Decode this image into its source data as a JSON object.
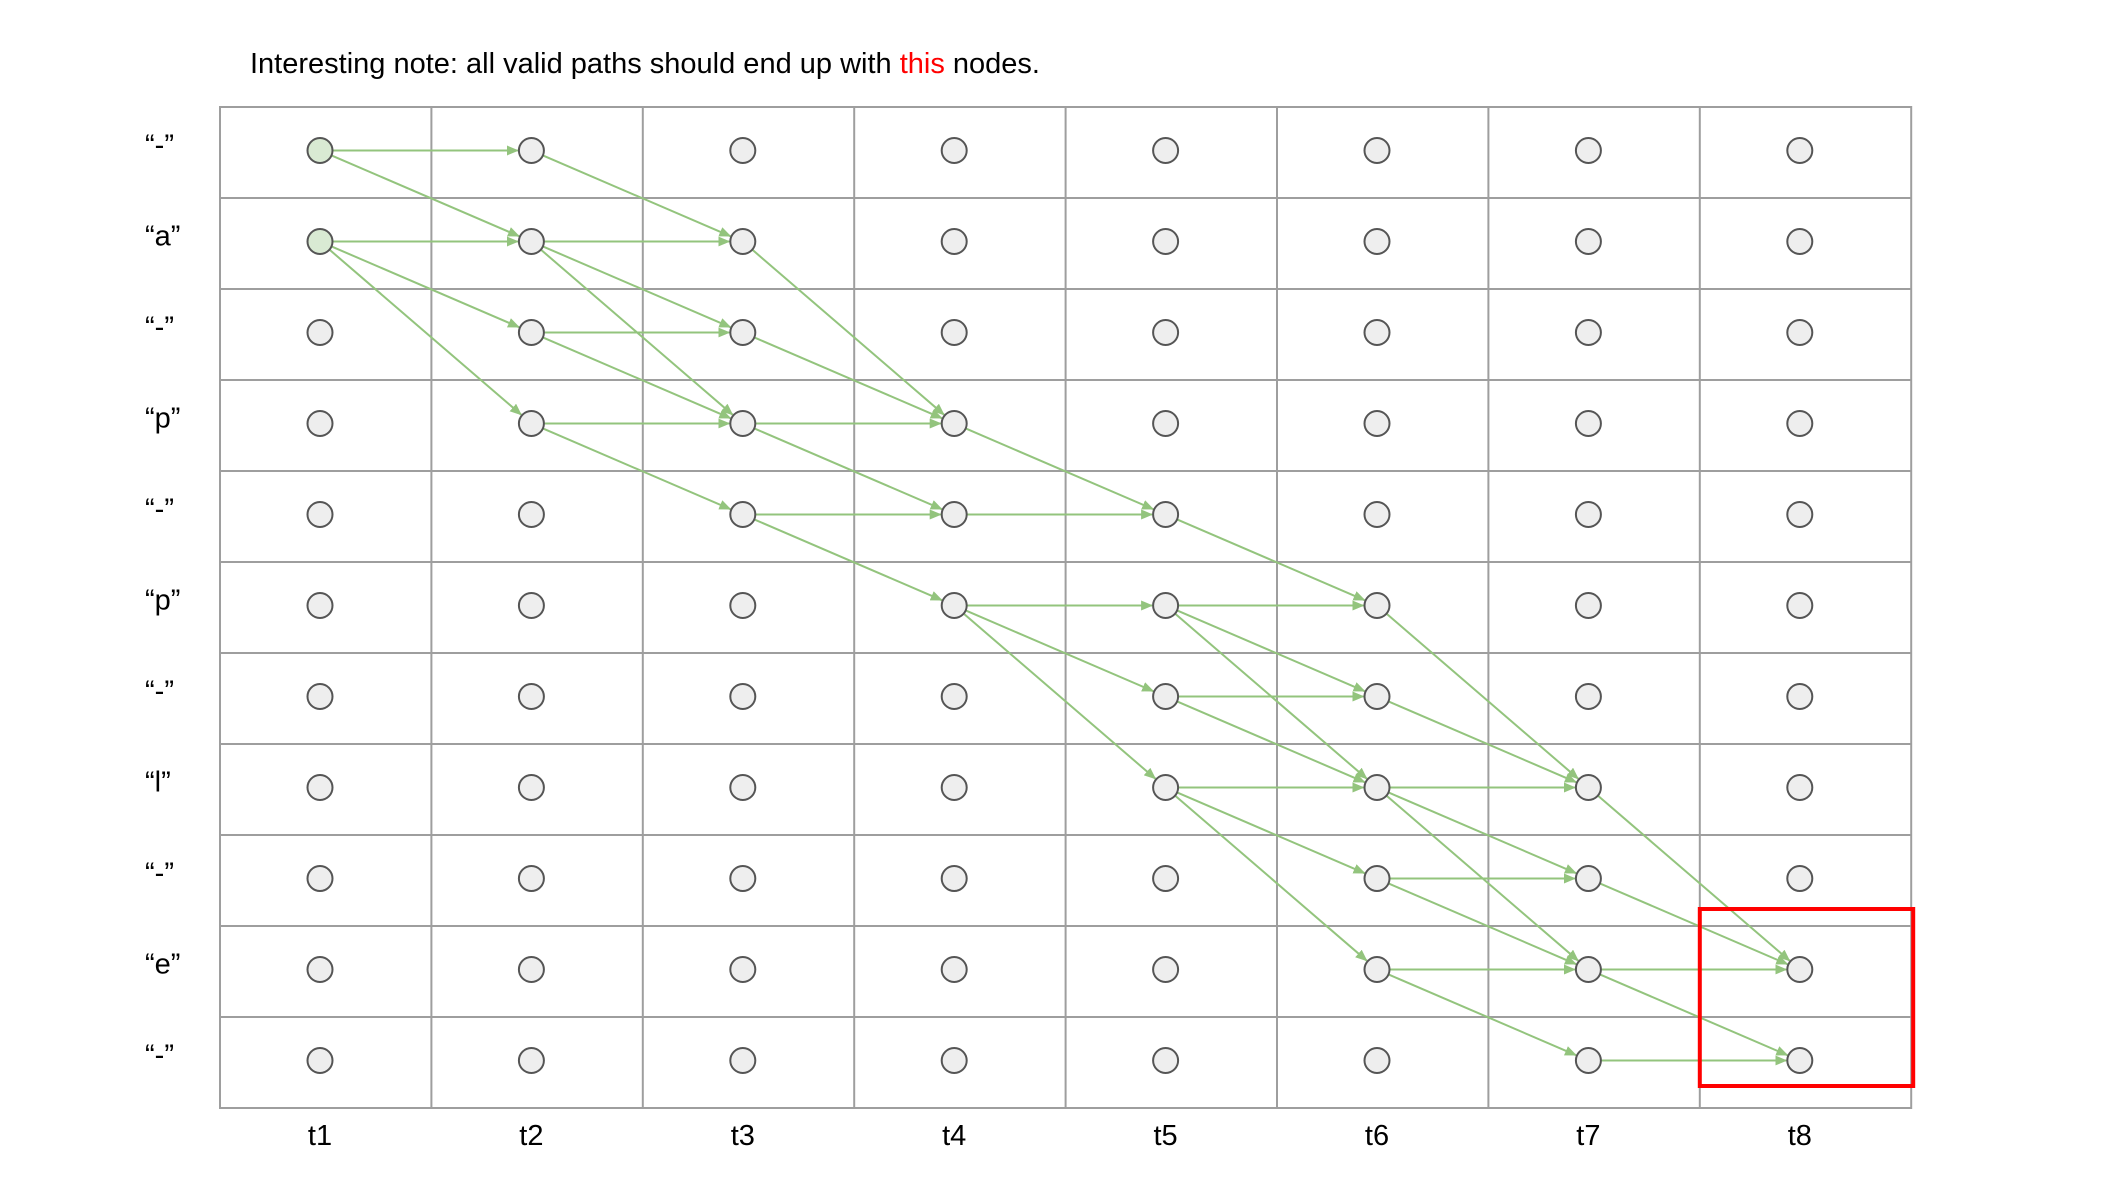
{
  "note": {
    "prefix": "Interesting note: all valid paths should end up with ",
    "highlight": "this",
    "suffix": " nodes."
  },
  "row_labels": [
    "“-”",
    "“a”",
    "“-”",
    "“p”",
    "“-”",
    "“p”",
    "“-”",
    "“l”",
    "“-”",
    "“e”",
    "“-”"
  ],
  "column_labels": [
    "t1",
    "t2",
    "t3",
    "t4",
    "t5",
    "t6",
    "t7",
    "t8"
  ],
  "colors": {
    "grid": "#9e9e9e",
    "node_fill": "#eeeeee",
    "node_start_fill": "#d9ead3",
    "node_stroke": "#555555",
    "edge": "#93c47d",
    "highlight_box": "#ff0000",
    "highlight_text": "#ff0000"
  },
  "start_nodes": [
    [
      0,
      0
    ],
    [
      0,
      1
    ]
  ],
  "edges": [
    [
      0,
      0,
      1,
      0
    ],
    [
      0,
      0,
      1,
      1
    ],
    [
      0,
      1,
      1,
      1
    ],
    [
      0,
      1,
      1,
      2
    ],
    [
      0,
      1,
      1,
      3
    ],
    [
      1,
      0,
      2,
      1
    ],
    [
      1,
      1,
      2,
      1
    ],
    [
      1,
      1,
      2,
      2
    ],
    [
      1,
      1,
      2,
      3
    ],
    [
      1,
      2,
      2,
      2
    ],
    [
      1,
      2,
      2,
      3
    ],
    [
      1,
      3,
      2,
      3
    ],
    [
      1,
      3,
      2,
      4
    ],
    [
      2,
      1,
      3,
      3
    ],
    [
      2,
      2,
      3,
      3
    ],
    [
      2,
      3,
      3,
      3
    ],
    [
      2,
      3,
      3,
      4
    ],
    [
      2,
      4,
      3,
      4
    ],
    [
      2,
      4,
      3,
      5
    ],
    [
      3,
      3,
      4,
      4
    ],
    [
      3,
      4,
      4,
      4
    ],
    [
      3,
      5,
      4,
      5
    ],
    [
      3,
      5,
      4,
      6
    ],
    [
      3,
      5,
      4,
      7
    ],
    [
      4,
      4,
      5,
      5
    ],
    [
      4,
      5,
      5,
      5
    ],
    [
      4,
      5,
      5,
      6
    ],
    [
      4,
      5,
      5,
      7
    ],
    [
      4,
      6,
      5,
      6
    ],
    [
      4,
      6,
      5,
      7
    ],
    [
      4,
      7,
      5,
      7
    ],
    [
      4,
      7,
      5,
      8
    ],
    [
      4,
      7,
      5,
      9
    ],
    [
      5,
      5,
      6,
      7
    ],
    [
      5,
      6,
      6,
      7
    ],
    [
      5,
      7,
      6,
      7
    ],
    [
      5,
      7,
      6,
      8
    ],
    [
      5,
      7,
      6,
      9
    ],
    [
      5,
      8,
      6,
      8
    ],
    [
      5,
      8,
      6,
      9
    ],
    [
      5,
      9,
      6,
      9
    ],
    [
      5,
      9,
      6,
      10
    ],
    [
      6,
      7,
      7,
      9
    ],
    [
      6,
      8,
      7,
      9
    ],
    [
      6,
      9,
      7,
      9
    ],
    [
      6,
      9,
      7,
      10
    ],
    [
      6,
      10,
      7,
      10
    ]
  ],
  "highlight": {
    "col": 7,
    "rows": [
      9,
      10
    ]
  }
}
